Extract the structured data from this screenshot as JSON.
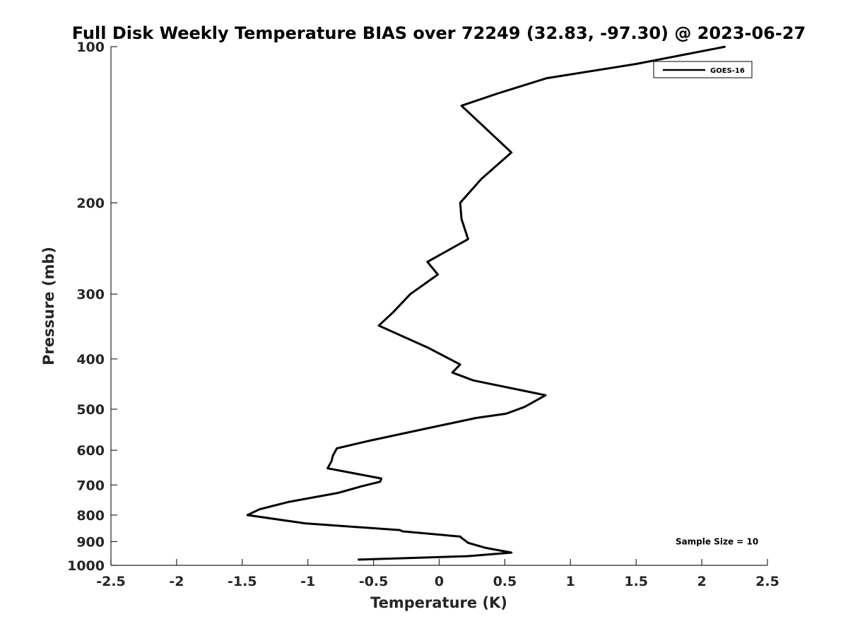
{
  "chart_data": {
    "type": "line",
    "title": "Full Disk Weekly Temperature BIAS over 72249 (32.83, -97.30) @ 2023-06-27",
    "xlabel": "Temperature (K)",
    "ylabel": "Pressure (mb)",
    "xlim": [
      -2.5,
      2.5
    ],
    "ylim": [
      1000,
      100
    ],
    "y_scale": "log",
    "y_reversed": true,
    "x_ticks": [
      -2.5,
      -2,
      -1.5,
      -1,
      -0.5,
      0,
      0.5,
      1,
      1.5,
      2,
      2.5
    ],
    "x_tick_labels": [
      "-2.5",
      "-2",
      "-1.5",
      "-1",
      "-0.5",
      "0",
      "0.5",
      "1",
      "1.5",
      "2",
      "2.5"
    ],
    "y_ticks": [
      100,
      200,
      300,
      400,
      500,
      600,
      700,
      800,
      900,
      1000
    ],
    "y_tick_labels": [
      "100",
      "200",
      "300",
      "400",
      "500",
      "600",
      "700",
      "800",
      "900",
      "1000"
    ],
    "grid": false,
    "legend_position": "top-right",
    "series": [
      {
        "name": "GOES-16",
        "color": "#000000",
        "points": [
          [
            2.18,
            100
          ],
          [
            1.5,
            108
          ],
          [
            0.82,
            115
          ],
          [
            0.45,
            123
          ],
          [
            0.17,
            130
          ],
          [
            0.55,
            160
          ],
          [
            0.32,
            180
          ],
          [
            0.16,
            200
          ],
          [
            0.17,
            215
          ],
          [
            0.22,
            235
          ],
          [
            -0.09,
            260
          ],
          [
            -0.01,
            275
          ],
          [
            -0.22,
            300
          ],
          [
            -0.35,
            325
          ],
          [
            -0.46,
            345
          ],
          [
            -0.09,
            380
          ],
          [
            0.16,
            410
          ],
          [
            0.1,
            425
          ],
          [
            0.26,
            440
          ],
          [
            0.81,
            470
          ],
          [
            0.65,
            495
          ],
          [
            0.51,
            510
          ],
          [
            0.28,
            520
          ],
          [
            -0.1,
            545
          ],
          [
            -0.53,
            575
          ],
          [
            -0.78,
            595
          ],
          [
            -0.81,
            615
          ],
          [
            -0.82,
            630
          ],
          [
            -0.85,
            650
          ],
          [
            -0.44,
            680
          ],
          [
            -0.45,
            690
          ],
          [
            -0.6,
            705
          ],
          [
            -0.77,
            725
          ],
          [
            -1.15,
            755
          ],
          [
            -1.37,
            780
          ],
          [
            -1.46,
            800
          ],
          [
            -1.02,
            830
          ],
          [
            -0.3,
            855
          ],
          [
            -0.28,
            860
          ],
          [
            0.16,
            880
          ],
          [
            0.17,
            885
          ],
          [
            0.22,
            905
          ],
          [
            0.35,
            925
          ],
          [
            0.55,
            945
          ],
          [
            0.22,
            960
          ],
          [
            -0.62,
            975
          ]
        ]
      }
    ],
    "annotations": [
      {
        "text": "Sample Size = 10",
        "x": 1.8,
        "y": 900
      }
    ]
  }
}
